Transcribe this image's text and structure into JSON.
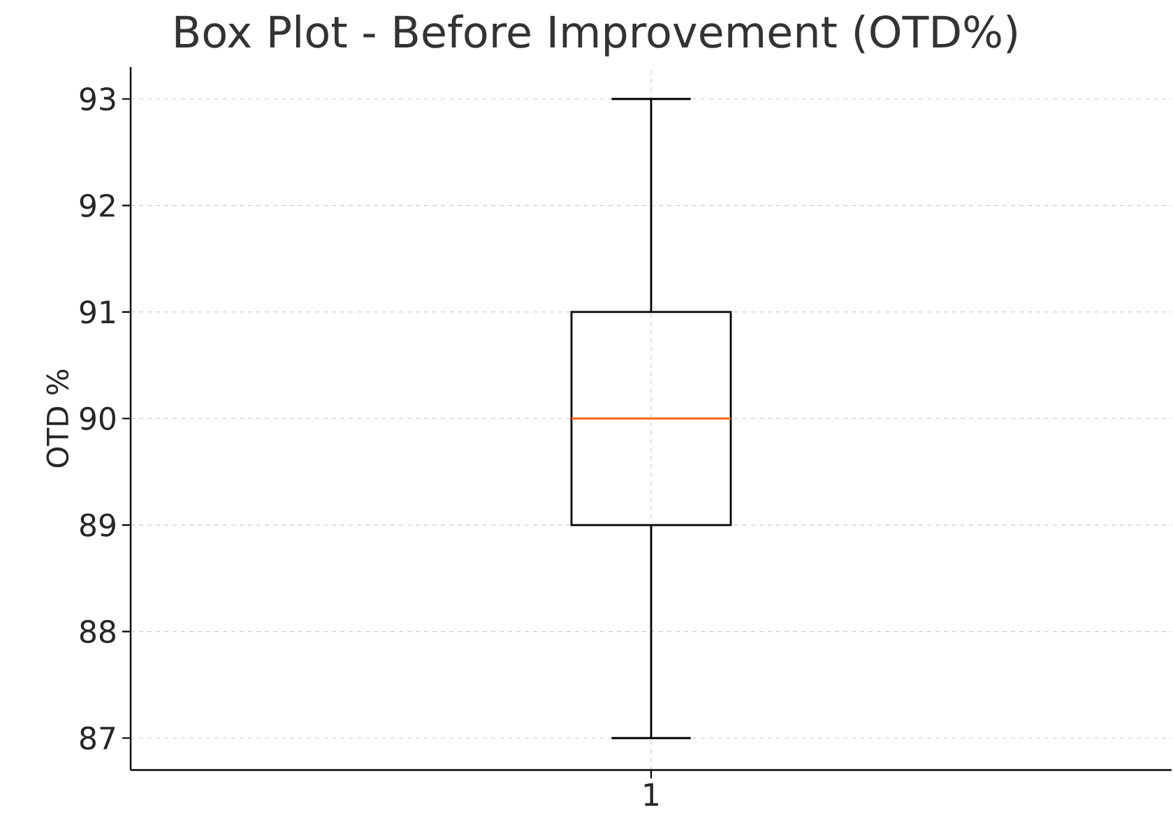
{
  "chart_data": {
    "type": "box",
    "title": "Box Plot - Before Improvement (OTD%)",
    "ylabel": "OTD %",
    "categories": [
      "1"
    ],
    "boxes": [
      {
        "low": 87,
        "q1": 89,
        "median": 90,
        "q3": 91,
        "high": 93
      }
    ],
    "ylim": [
      86.7,
      93.3
    ],
    "yticks": [
      87,
      88,
      89,
      90,
      91,
      92,
      93
    ],
    "grid": true
  }
}
